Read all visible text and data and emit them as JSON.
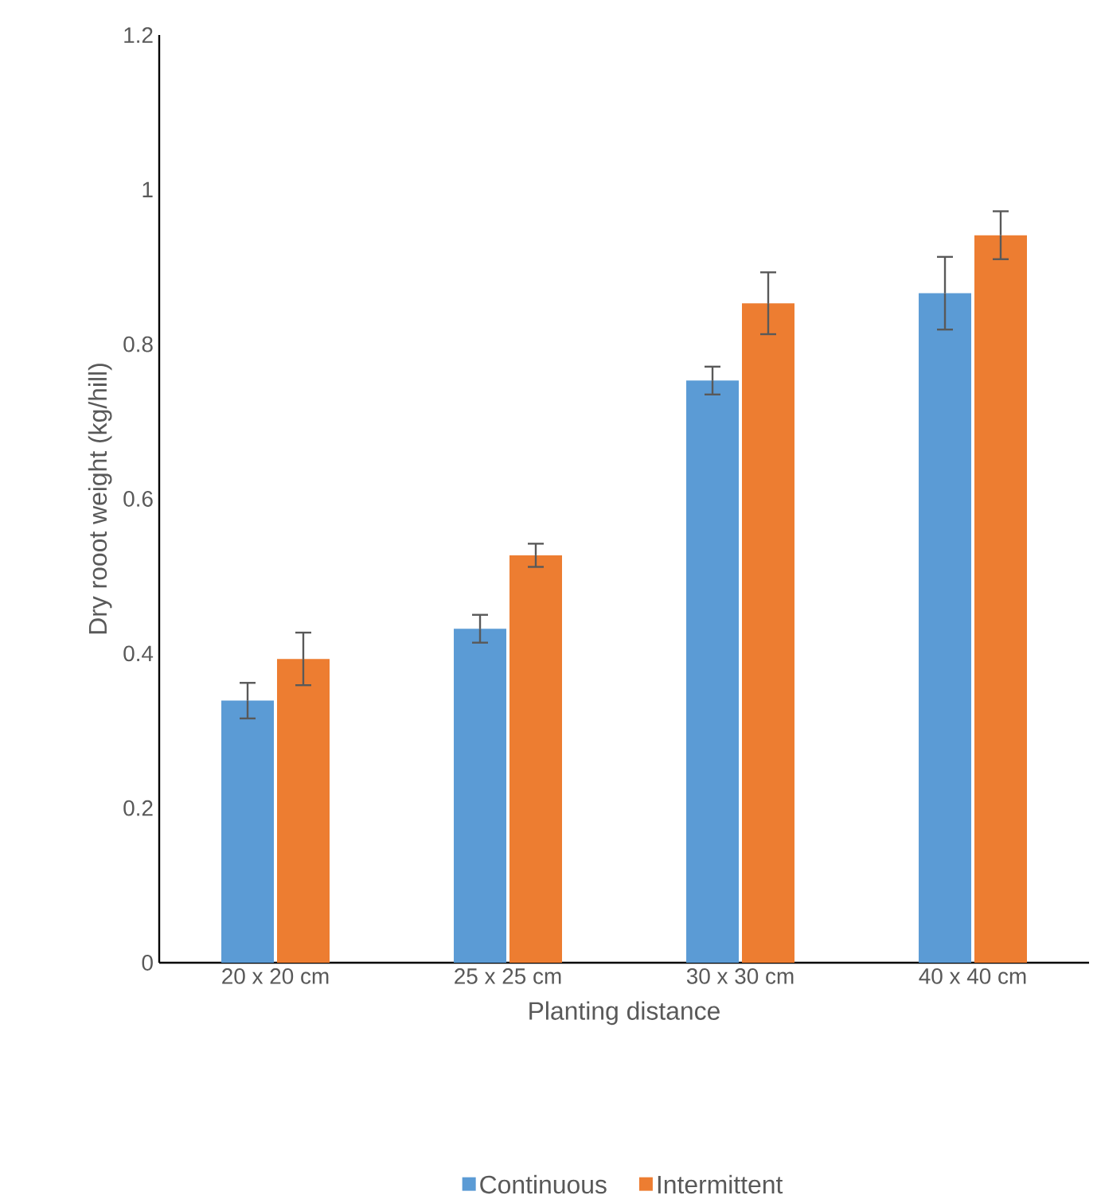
{
  "chart_data": {
    "type": "bar",
    "xlabel": "Planting distance",
    "ylabel": "Dry rooot weight (kg/hill)",
    "categories": [
      "20 x 20 cm",
      "25 x 25 cm",
      "30 x 30 cm",
      "40 x 40 cm"
    ],
    "series": [
      {
        "name": "Continuous",
        "color": "#5b9bd5",
        "values": [
          0.339,
          0.432,
          0.753,
          0.866
        ],
        "errors": [
          0.023,
          0.018,
          0.018,
          0.047
        ]
      },
      {
        "name": "Intermittent",
        "color": "#ed7d31",
        "values": [
          0.393,
          0.527,
          0.853,
          0.941
        ],
        "errors": [
          0.034,
          0.015,
          0.04,
          0.031
        ]
      }
    ],
    "ylim": [
      0,
      1.2
    ],
    "yticks": [
      0,
      0.2,
      0.4,
      0.6,
      0.8,
      1,
      1.2
    ],
    "grid": false,
    "legend": "bottom"
  }
}
